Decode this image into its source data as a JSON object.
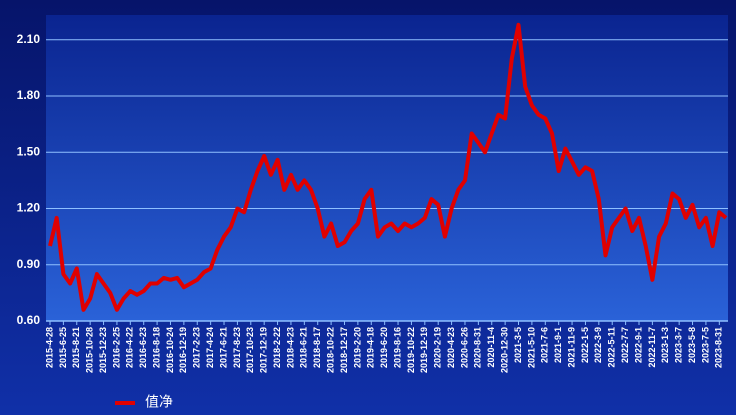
{
  "chart_data": {
    "type": "line",
    "categories": [
      "2015-4-28",
      null,
      "2015-6-25",
      null,
      "2015-8-21",
      null,
      "2015-10-28",
      null,
      "2015-12-23",
      null,
      "2016-2-25",
      null,
      "2016-4-22",
      null,
      "2016-6-23",
      null,
      "2016-8-18",
      null,
      "2016-10-24",
      null,
      "2016-12-19",
      null,
      "2017-2-23",
      null,
      "2017-4-24",
      null,
      "2017-6-21",
      null,
      "2017-8-23",
      null,
      "2017-10-23",
      null,
      "2017-12-19",
      null,
      "2018-2-22",
      null,
      "2018-4-23",
      null,
      "2018-6-21",
      null,
      "2018-8-17",
      null,
      "2018-10-22",
      null,
      "2018-12-17",
      null,
      "2019-2-20",
      null,
      "2019-4-18",
      null,
      "2019-6-20",
      null,
      "2019-8-16",
      null,
      "2019-10-22",
      null,
      "2019-12-19",
      null,
      "2020-2-19",
      null,
      "2020-4-23",
      null,
      "2020-6-26",
      null,
      "2020-8-31",
      null,
      "2020-11-4",
      null,
      "2020-12-30",
      null,
      "2021-3-5",
      null,
      "2021-5-10",
      null,
      "2021-7-6",
      null,
      "2021-9-1",
      null,
      "2021-11-9",
      null,
      "2022-1-5",
      null,
      "2022-3-9",
      null,
      "2022-5-11",
      null,
      "2022-7-7",
      null,
      "2022-9-1",
      null,
      "2022-11-7",
      null,
      "2023-1-3",
      null,
      "2023-3-7",
      null,
      "2023-5-8",
      null,
      "2023-7-5",
      null,
      "2023-8-31",
      null
    ],
    "series": [
      {
        "name": "值净",
        "color": "#e00000",
        "values": [
          1.0,
          1.15,
          0.85,
          0.8,
          0.88,
          0.66,
          0.72,
          0.85,
          0.8,
          0.75,
          0.66,
          0.72,
          0.76,
          0.74,
          0.76,
          0.8,
          0.8,
          0.83,
          0.82,
          0.83,
          0.78,
          0.8,
          0.82,
          0.86,
          0.88,
          0.98,
          1.05,
          1.1,
          1.2,
          1.18,
          1.3,
          1.4,
          1.48,
          1.38,
          1.46,
          1.3,
          1.38,
          1.3,
          1.35,
          1.3,
          1.2,
          1.05,
          1.12,
          1.0,
          1.02,
          1.08,
          1.12,
          1.25,
          1.3,
          1.05,
          1.1,
          1.12,
          1.08,
          1.12,
          1.1,
          1.12,
          1.15,
          1.25,
          1.22,
          1.05,
          1.2,
          1.3,
          1.35,
          1.6,
          1.55,
          1.5,
          1.6,
          1.7,
          1.68,
          2.0,
          2.18,
          1.85,
          1.75,
          1.7,
          1.68,
          1.6,
          1.4,
          1.52,
          1.45,
          1.38,
          1.42,
          1.4,
          1.25,
          0.95,
          1.1,
          1.15,
          1.2,
          1.08,
          1.15,
          1.0,
          0.82,
          1.05,
          1.12,
          1.28,
          1.25,
          1.15,
          1.22,
          1.1,
          1.15,
          1.0,
          1.18,
          1.15
        ]
      }
    ],
    "ylim": [
      0.6,
      2.2
    ],
    "yticks": [
      {
        "value": 0.6,
        "label": "0.60"
      },
      {
        "value": 0.9,
        "label": "0.90"
      },
      {
        "value": 1.2,
        "label": "1.20"
      },
      {
        "value": 1.5,
        "label": "1.50"
      },
      {
        "value": 1.8,
        "label": "1.80"
      },
      {
        "value": 2.1,
        "label": "2.10"
      }
    ],
    "grid": true
  }
}
